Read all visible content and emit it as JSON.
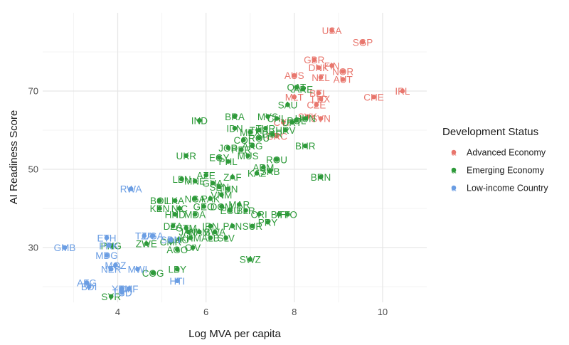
{
  "chart_data": {
    "type": "scatter",
    "xlabel": "Log MVA per capita",
    "ylabel": "AI Readiness Score",
    "xlim": [
      2.3,
      11.0
    ],
    "ylim": [
      16,
      90
    ],
    "x_ticks": [
      4,
      6,
      8,
      10
    ],
    "y_ticks": [
      30,
      50,
      70
    ],
    "grid": true,
    "legend": {
      "title": "Development Status",
      "position": "right",
      "entries": [
        {
          "name": "Advanced Economy",
          "color": "#e8766d"
        },
        {
          "name": "Emerging Economy",
          "color": "#2e9a3a"
        },
        {
          "name": "Low-income Country",
          "color": "#6a9de3"
        }
      ]
    },
    "series": [
      {
        "name": "Advanced Economy",
        "color": "#e8766d",
        "points": [
          {
            "label": "USA",
            "x": 8.85,
            "y": 85.5
          },
          {
            "label": "SGP",
            "x": 9.55,
            "y": 82.5
          },
          {
            "label": "GBR",
            "x": 8.45,
            "y": 78.0
          },
          {
            "label": "FIN",
            "x": 8.85,
            "y": 76.5
          },
          {
            "label": "DNK",
            "x": 8.55,
            "y": 76.0
          },
          {
            "label": "NOR",
            "x": 9.1,
            "y": 75.0
          },
          {
            "label": "AUS",
            "x": 8.0,
            "y": 74.0
          },
          {
            "label": "NZL",
            "x": 8.6,
            "y": 73.5
          },
          {
            "label": "AUT",
            "x": 9.1,
            "y": 73.0
          },
          {
            "label": "IRL",
            "x": 10.45,
            "y": 70.0
          },
          {
            "label": "CHE",
            "x": 9.8,
            "y": 68.5
          },
          {
            "label": "BEL",
            "x": 8.55,
            "y": 69.5
          },
          {
            "label": "LUX",
            "x": 8.6,
            "y": 68.0
          },
          {
            "label": "CZE",
            "x": 8.5,
            "y": 66.5
          },
          {
            "label": "MLT",
            "x": 8.0,
            "y": 68.5
          },
          {
            "label": "SVN",
            "x": 8.6,
            "y": 63.0
          },
          {
            "label": "SVK",
            "x": 8.3,
            "y": 63.5
          },
          {
            "label": "CYP",
            "x": 7.75,
            "y": 62.0
          },
          {
            "label": "GRC",
            "x": 7.6,
            "y": 58.5
          }
        ]
      },
      {
        "name": "Emerging Economy",
        "color": "#2e9a3a",
        "points": [
          {
            "label": "ARE",
            "x": 8.2,
            "y": 70.5
          },
          {
            "label": "QAT",
            "x": 8.05,
            "y": 71.0
          },
          {
            "label": "SAU",
            "x": 7.85,
            "y": 66.5
          },
          {
            "label": "IND",
            "x": 5.85,
            "y": 62.5
          },
          {
            "label": "BRA",
            "x": 6.65,
            "y": 63.5
          },
          {
            "label": "MYS",
            "x": 7.4,
            "y": 63.5
          },
          {
            "label": "CHL",
            "x": 7.6,
            "y": 63.0
          },
          {
            "label": "URY",
            "x": 7.95,
            "y": 62.0
          },
          {
            "label": "POL",
            "x": 8.05,
            "y": 62.5
          },
          {
            "label": "HUN",
            "x": 8.25,
            "y": 63.0
          },
          {
            "label": "IDN",
            "x": 6.65,
            "y": 60.5
          },
          {
            "label": "MEX",
            "x": 7.0,
            "y": 59.5
          },
          {
            "label": "THA",
            "x": 7.2,
            "y": 60.0
          },
          {
            "label": "TUR",
            "x": 7.35,
            "y": 60.5
          },
          {
            "label": "HRV",
            "x": 7.8,
            "y": 60.0
          },
          {
            "label": "BGR",
            "x": 7.5,
            "y": 59.0
          },
          {
            "label": "COL",
            "x": 6.85,
            "y": 57.5
          },
          {
            "label": "ROU",
            "x": 7.2,
            "y": 58.0
          },
          {
            "label": "JOR",
            "x": 6.5,
            "y": 55.5
          },
          {
            "label": "PER",
            "x": 6.8,
            "y": 55.0
          },
          {
            "label": "ARG",
            "x": 7.05,
            "y": 56.0
          },
          {
            "label": "BHR",
            "x": 8.25,
            "y": 56.0
          },
          {
            "label": "UKR",
            "x": 5.55,
            "y": 53.5
          },
          {
            "label": "EGY",
            "x": 6.3,
            "y": 53.0
          },
          {
            "label": "MUS",
            "x": 6.95,
            "y": 53.5
          },
          {
            "label": "PHL",
            "x": 6.5,
            "y": 52.0
          },
          {
            "label": "ROU",
            "x": 7.6,
            "y": 52.5
          },
          {
            "label": "ARM",
            "x": 7.3,
            "y": 50.5
          },
          {
            "label": "KAZ",
            "x": 7.15,
            "y": 49.0
          },
          {
            "label": "SRB",
            "x": 7.45,
            "y": 49.5
          },
          {
            "label": "BRN",
            "x": 8.6,
            "y": 48.0
          },
          {
            "label": "LBN",
            "x": 5.45,
            "y": 47.5
          },
          {
            "label": "MNE",
            "x": 5.75,
            "y": 47.0
          },
          {
            "label": "AZE",
            "x": 6.0,
            "y": 48.5
          },
          {
            "label": "ZAF",
            "x": 6.6,
            "y": 48.0
          },
          {
            "label": "GHA",
            "x": 6.15,
            "y": 46.5
          },
          {
            "label": "SEN",
            "x": 6.3,
            "y": 45.5
          },
          {
            "label": "TUN",
            "x": 6.5,
            "y": 45.0
          },
          {
            "label": "VNM",
            "x": 6.35,
            "y": 43.5
          },
          {
            "label": "BOL",
            "x": 4.95,
            "y": 42.0
          },
          {
            "label": "LKA",
            "x": 5.3,
            "y": 42.0
          },
          {
            "label": "NGA",
            "x": 5.75,
            "y": 42.5
          },
          {
            "label": "PAK",
            "x": 6.1,
            "y": 42.5
          },
          {
            "label": "KEN",
            "x": 4.95,
            "y": 40.0
          },
          {
            "label": "NIC",
            "x": 5.4,
            "y": 40.0
          },
          {
            "label": "GEO",
            "x": 5.95,
            "y": 40.5
          },
          {
            "label": "DOM",
            "x": 6.35,
            "y": 40.5
          },
          {
            "label": "MAR",
            "x": 6.75,
            "y": 41.0
          },
          {
            "label": "BLR",
            "x": 6.9,
            "y": 39.5
          },
          {
            "label": "ECU",
            "x": 6.55,
            "y": 39.5
          },
          {
            "label": "HND",
            "x": 5.3,
            "y": 38.5
          },
          {
            "label": "MDA",
            "x": 5.75,
            "y": 38.5
          },
          {
            "label": "CRI",
            "x": 7.2,
            "y": 38.5
          },
          {
            "label": "BIH",
            "x": 7.65,
            "y": 38.5
          },
          {
            "label": "TTO",
            "x": 7.85,
            "y": 38.5
          },
          {
            "label": "PRY",
            "x": 7.4,
            "y": 36.5
          },
          {
            "label": "DZA",
            "x": 5.25,
            "y": 35.5
          },
          {
            "label": "GTM",
            "x": 5.55,
            "y": 35.0
          },
          {
            "label": "IRN",
            "x": 6.1,
            "y": 35.5
          },
          {
            "label": "PAN",
            "x": 6.6,
            "y": 35.5
          },
          {
            "label": "SUR",
            "x": 7.05,
            "y": 35.5
          },
          {
            "label": "JAM",
            "x": 5.6,
            "y": 34.0
          },
          {
            "label": "NAM",
            "x": 5.85,
            "y": 34.0
          },
          {
            "label": "BWA",
            "x": 6.2,
            "y": 34.0
          },
          {
            "label": "ZWE",
            "x": 4.65,
            "y": 31.0
          },
          {
            "label": "CMR",
            "x": 5.2,
            "y": 31.5
          },
          {
            "label": "LAO",
            "x": 5.4,
            "y": 32.0
          },
          {
            "label": "KHM",
            "x": 5.65,
            "y": 32.5
          },
          {
            "label": "ALB",
            "x": 6.1,
            "y": 32.5
          },
          {
            "label": "SLV",
            "x": 6.45,
            "y": 32.5
          },
          {
            "label": "AGO",
            "x": 5.35,
            "y": 29.5
          },
          {
            "label": "CIV",
            "x": 5.7,
            "y": 30.0
          },
          {
            "label": "PNG",
            "x": 3.85,
            "y": 30.5
          },
          {
            "label": "SWZ",
            "x": 7.0,
            "y": 27.0
          },
          {
            "label": "COG",
            "x": 4.8,
            "y": 23.5
          },
          {
            "label": "LBY",
            "x": 5.35,
            "y": 24.5
          },
          {
            "label": "SYR",
            "x": 3.85,
            "y": 17.5
          }
        ]
      },
      {
        "name": "Low-income Country",
        "color": "#6a9de3",
        "points": [
          {
            "label": "RWA",
            "x": 4.3,
            "y": 45.0
          },
          {
            "label": "GMB",
            "x": 2.8,
            "y": 30.0
          },
          {
            "label": "ETH",
            "x": 3.75,
            "y": 32.5
          },
          {
            "label": "PRK",
            "x": 3.8,
            "y": 30.5
          },
          {
            "label": "MDG",
            "x": 3.75,
            "y": 28.0
          },
          {
            "label": "TZA",
            "x": 4.6,
            "y": 33.0
          },
          {
            "label": "UGA",
            "x": 4.8,
            "y": 33.0
          },
          {
            "label": "SDN",
            "x": 5.2,
            "y": 32.0
          },
          {
            "label": "MOZ",
            "x": 3.95,
            "y": 25.5
          },
          {
            "label": "NER",
            "x": 3.85,
            "y": 24.5
          },
          {
            "label": "MWI",
            "x": 4.45,
            "y": 24.5
          },
          {
            "label": "AFG",
            "x": 3.3,
            "y": 21.0
          },
          {
            "label": "BDI",
            "x": 3.35,
            "y": 20.0
          },
          {
            "label": "YEM",
            "x": 4.1,
            "y": 19.5
          },
          {
            "label": "TCD",
            "x": 4.1,
            "y": 18.5
          },
          {
            "label": "CAF",
            "x": 4.25,
            "y": 19.5
          },
          {
            "label": "HTI",
            "x": 5.35,
            "y": 21.5
          }
        ]
      }
    ]
  }
}
